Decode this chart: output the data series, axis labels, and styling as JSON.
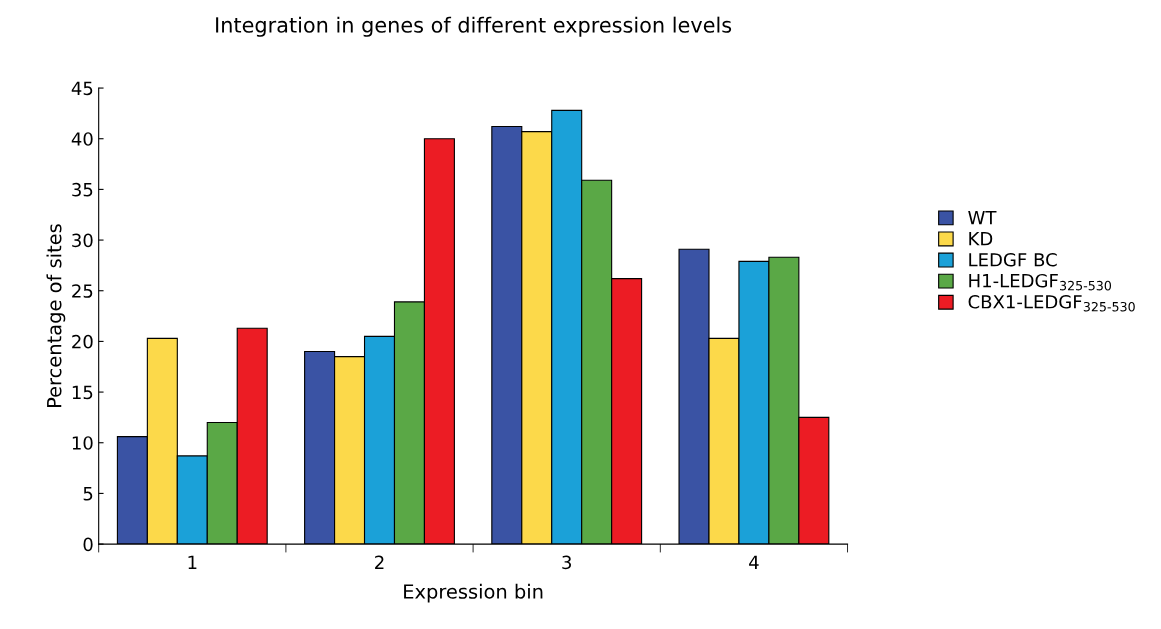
{
  "chart_data": {
    "type": "bar",
    "title": "Integration in genes of different expression levels",
    "xlabel": "Expression bin",
    "ylabel": "Percentage of sites",
    "categories": [
      "1",
      "2",
      "3",
      "4"
    ],
    "series": [
      {
        "name": "WT",
        "color": "#3a53a4",
        "values": [
          10.6,
          19.0,
          41.2,
          29.1
        ]
      },
      {
        "name": "KD",
        "color": "#fcd94a",
        "values": [
          20.3,
          18.5,
          40.7,
          20.3
        ]
      },
      {
        "name": "LEDGF BC",
        "color": "#1ba1d8",
        "values": [
          8.7,
          20.5,
          42.8,
          27.9
        ]
      },
      {
        "name": "H1-LEDGF$_{325-530}$",
        "color": "#5aa846",
        "values": [
          12.0,
          23.9,
          35.9,
          28.3
        ]
      },
      {
        "name": "CBX1-LEDGF$_{325-530}$",
        "color": "#ec1c24",
        "values": [
          21.3,
          40.0,
          26.2,
          12.5
        ]
      }
    ],
    "ylim": [
      0,
      45
    ],
    "yticks": [
      0,
      5,
      10,
      15,
      20,
      25,
      30,
      35,
      40,
      45
    ],
    "grid": false,
    "legend": "right"
  }
}
